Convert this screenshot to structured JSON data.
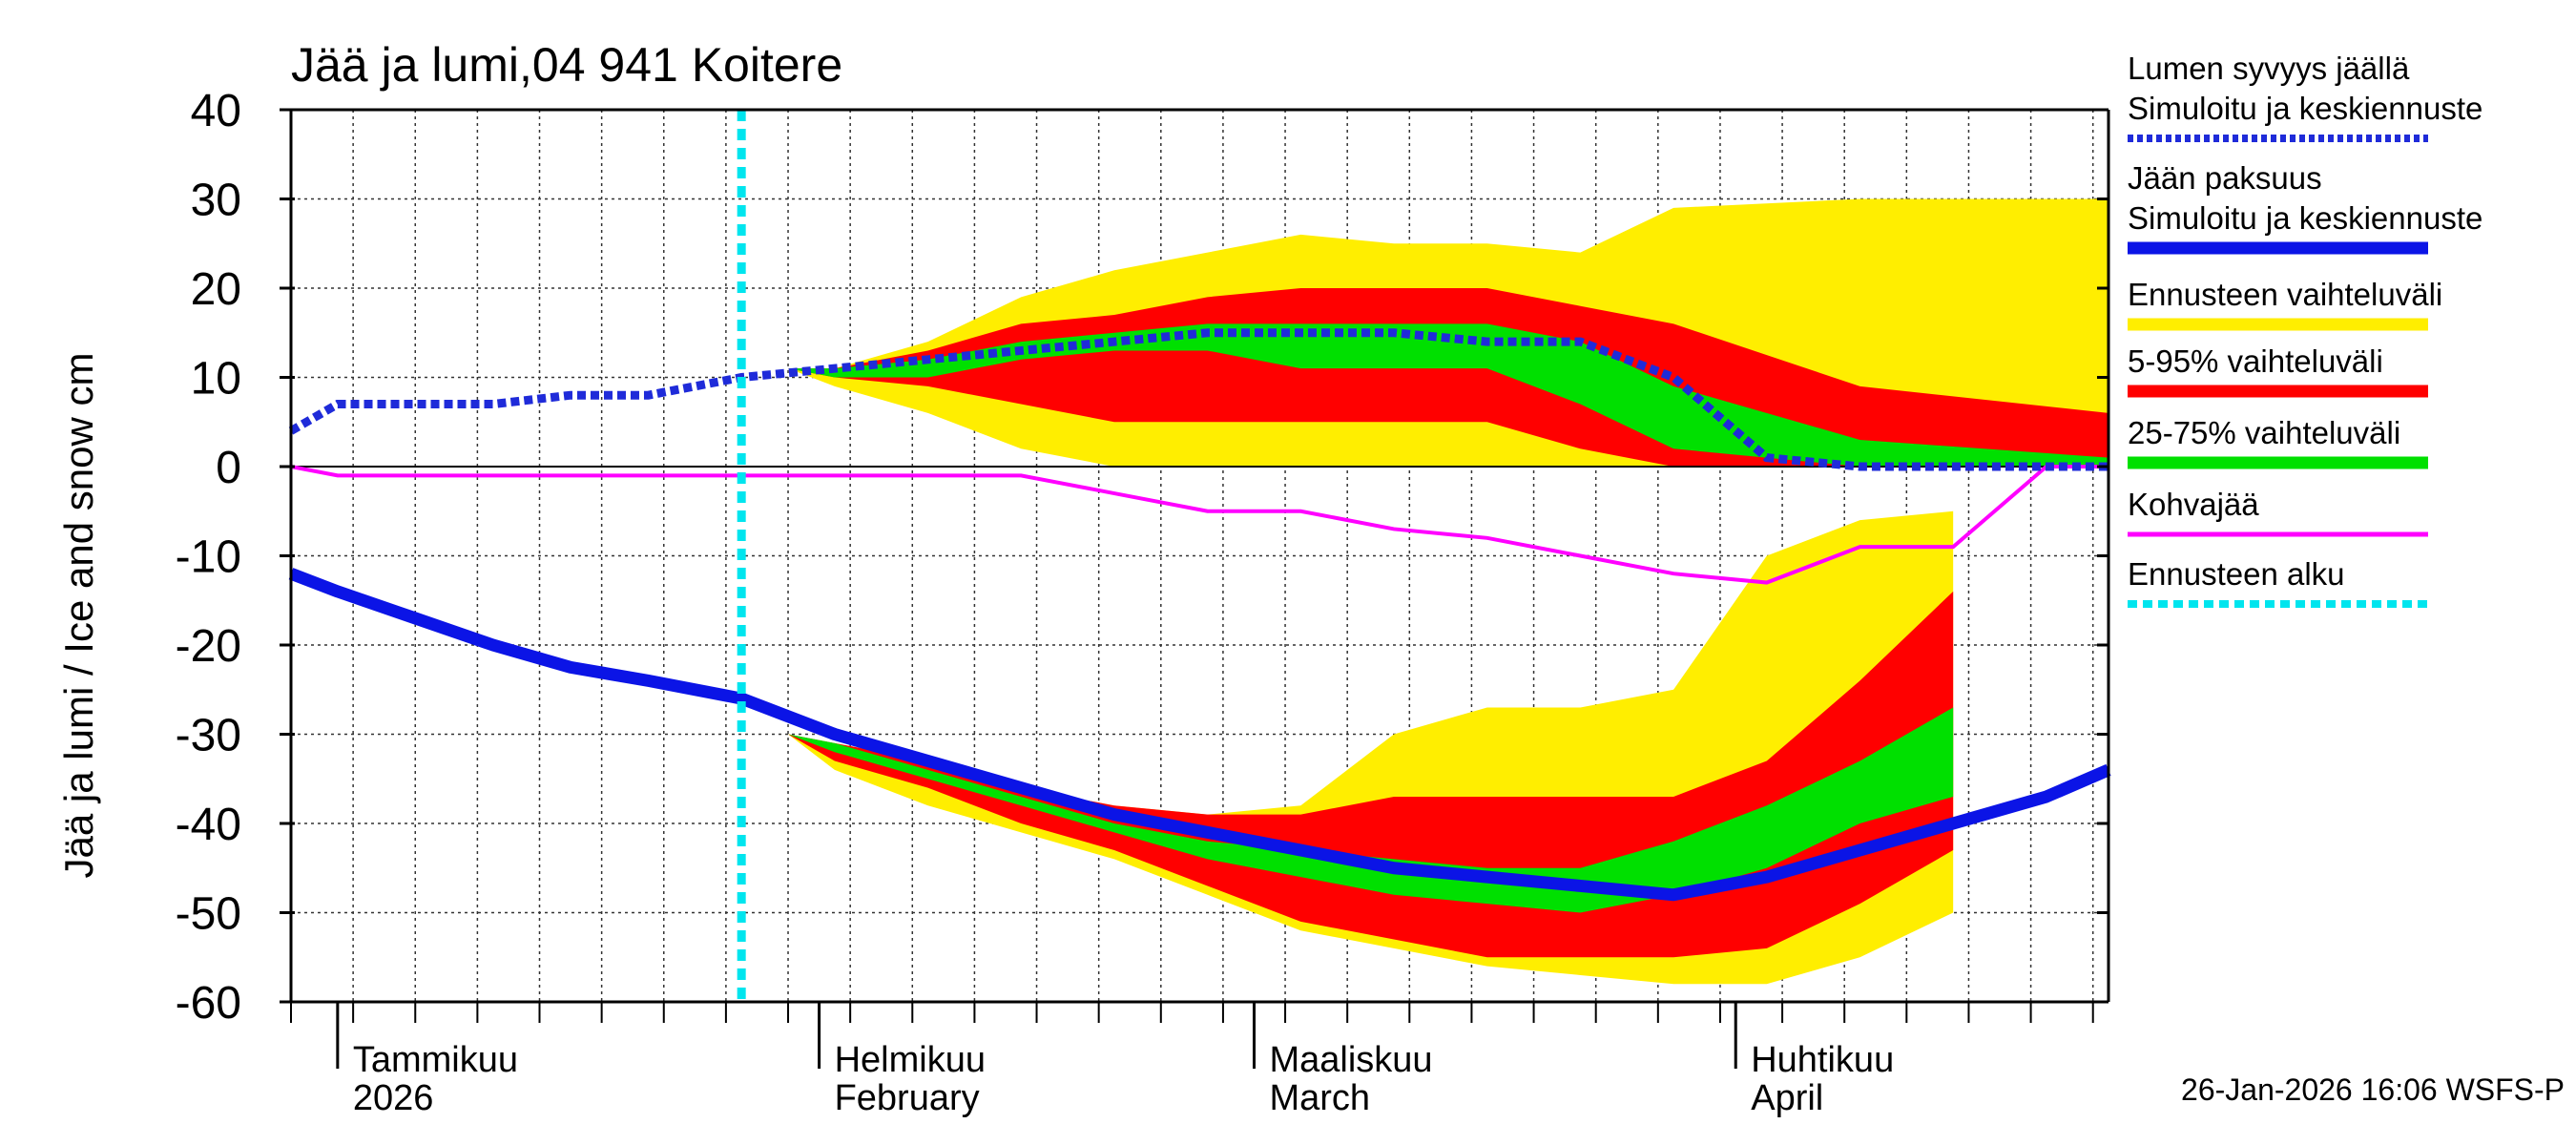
{
  "chart_data": {
    "type": "area",
    "title": "Jää ja lumi,04 941 Koitere",
    "ylabel": "Jää ja lumi / Ice and snow    cm",
    "ylim": [
      -60,
      40
    ],
    "yticks": [
      40,
      30,
      20,
      10,
      0,
      -10,
      -20,
      -30,
      -40,
      -50,
      -60
    ],
    "x_day_range": [
      0,
      117
    ],
    "months": [
      {
        "fi": "Tammikuu",
        "en": "2026",
        "day": 3
      },
      {
        "fi": "Helmikuu",
        "en": "February",
        "day": 34
      },
      {
        "fi": "Maaliskuu",
        "en": "March",
        "day": 62
      },
      {
        "fi": "Huhtikuu",
        "en": "April",
        "day": 93
      }
    ],
    "forecast_start_day": 29,
    "days": [
      0,
      3,
      8,
      13,
      18,
      23,
      29,
      35,
      41,
      47,
      53,
      59,
      65,
      71,
      77,
      83,
      89,
      95,
      101,
      107,
      113,
      117
    ],
    "snow_depth": [
      4,
      7,
      7,
      7,
      8,
      8,
      10,
      11,
      12,
      13,
      14,
      15,
      15,
      15,
      14,
      14,
      10,
      1,
      0,
      0,
      0,
      0
    ],
    "ice_thickness": [
      -12,
      -14,
      -17,
      -20,
      -22.5,
      -24,
      -26,
      -30,
      -33,
      -36,
      -39,
      -41,
      -43,
      -45,
      -46,
      -47,
      -48,
      -46,
      -43,
      -40,
      -37,
      -34
    ],
    "slush": [
      0,
      -1,
      -1,
      -1,
      -1,
      -1,
      -1,
      -1,
      -1,
      -1,
      -3,
      -5,
      -5,
      -7,
      -8,
      -10,
      -12,
      -13,
      -9,
      -9,
      0,
      0
    ],
    "snow_bands": {
      "yellow_hi": [
        11,
        11,
        14,
        19,
        22,
        24,
        26,
        25,
        25,
        24,
        29,
        30,
        30
      ],
      "red_hi": [
        11,
        11,
        13,
        16,
        17,
        19,
        20,
        20,
        20,
        18,
        16,
        9,
        6
      ],
      "green_hi": [
        11,
        11,
        12,
        14,
        15,
        16,
        16,
        16,
        16,
        14,
        9,
        3,
        1
      ],
      "green_lo": [
        11,
        10,
        10,
        12,
        13,
        13,
        11,
        11,
        11,
        7,
        2,
        0,
        0
      ],
      "red_lo": [
        11,
        10,
        9,
        7,
        5,
        5,
        5,
        5,
        5,
        2,
        0,
        0,
        0
      ],
      "yellow_lo": [
        11,
        9,
        6,
        2,
        0,
        0,
        0,
        0,
        0,
        0,
        0,
        0,
        0
      ]
    },
    "ice_bands": {
      "yellow_hi": [
        -30,
        -31,
        -33,
        -36,
        -38,
        -39,
        -38,
        -30,
        -27,
        -27,
        -25,
        -10,
        -6,
        -5
      ],
      "red_hi": [
        -30,
        -31,
        -33,
        -36,
        -38,
        -39,
        -39,
        -37,
        -37,
        -37,
        -37,
        -33,
        -24,
        -14
      ],
      "green_hi": [
        -30,
        -31,
        -34,
        -37,
        -40,
        -42,
        -43,
        -44,
        -45,
        -45,
        -42,
        -38,
        -33,
        -27
      ],
      "green_lo": [
        -30,
        -32,
        -35,
        -38,
        -41,
        -44,
        -46,
        -48,
        -49,
        -50,
        -48,
        -45,
        -40,
        -37
      ],
      "red_lo": [
        -30,
        -33,
        -36,
        -40,
        -43,
        -47,
        -51,
        -53,
        -55,
        -55,
        -55,
        -54,
        -49,
        -43
      ],
      "yellow_lo": [
        -30,
        -34,
        -38,
        -41,
        -44,
        -48,
        -52,
        -54,
        -56,
        -57,
        -58,
        -58,
        -55,
        -50
      ]
    },
    "band_days": [
      32,
      35,
      41,
      47,
      53,
      59,
      65,
      71,
      77,
      83,
      89,
      95,
      101,
      107
    ],
    "band_days_snow": [
      32,
      35,
      41,
      47,
      53,
      59,
      65,
      71,
      77,
      83,
      89,
      101,
      117
    ],
    "colors": {
      "snow": "#1f2bd9",
      "ice": "#0b14e6",
      "yellow": "#ffee00",
      "red": "#ff0000",
      "green": "#00e000",
      "slush": "#ff00ff",
      "forecast_start": "#00e5ee"
    }
  },
  "legend": [
    {
      "label1": "Lumen syvyys jäällä",
      "label2": "Simuloitu ja keskiennuste",
      "style": "dotted-blue"
    },
    {
      "label1": "Jään paksuus",
      "label2": "Simuloitu ja keskiennuste",
      "style": "solid-blue"
    },
    {
      "label1": "Ennusteen vaihteluväli",
      "label2": "",
      "style": "yellow"
    },
    {
      "label1": "5-95% vaihteluväli",
      "label2": "",
      "style": "red"
    },
    {
      "label1": "25-75% vaihteluväli",
      "label2": "",
      "style": "green"
    },
    {
      "label1": "Kohvajää",
      "label2": "",
      "style": "magenta"
    },
    {
      "label1": "Ennusteen alku",
      "label2": "",
      "style": "cyan-dotted"
    }
  ],
  "footer": "26-Jan-2026 16:06 WSFS-P"
}
